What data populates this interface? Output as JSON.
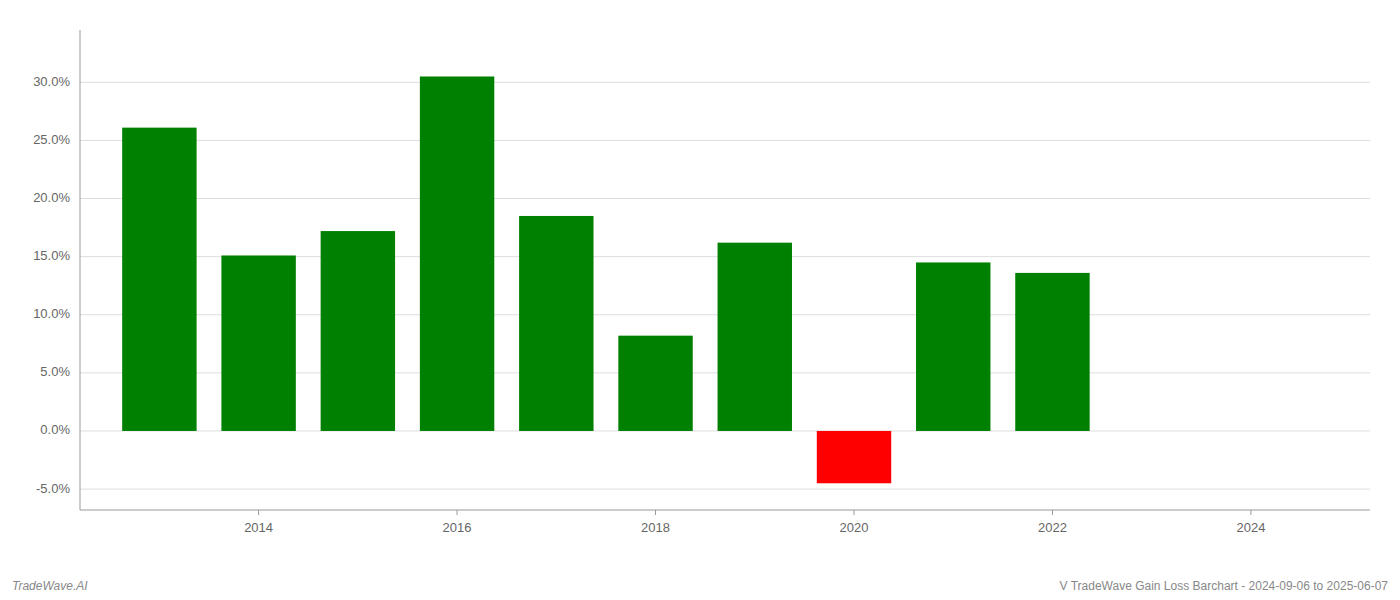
{
  "chart_data": {
    "type": "bar",
    "x": [
      2013,
      2014,
      2015,
      2016,
      2017,
      2018,
      2019,
      2020,
      2021,
      2022
    ],
    "values": [
      0.261,
      0.151,
      0.172,
      0.305,
      0.185,
      0.082,
      0.162,
      -0.045,
      0.145,
      0.136
    ],
    "colors": [
      "#008000",
      "#008000",
      "#008000",
      "#008000",
      "#008000",
      "#008000",
      "#008000",
      "#ff0000",
      "#008000",
      "#008000"
    ],
    "xlim": [
      2012.2,
      2025.2
    ],
    "xticks": [
      2014,
      2016,
      2018,
      2020,
      2022,
      2024
    ],
    "ylim": [
      -0.068,
      0.345
    ],
    "yticks": [
      {
        "value": -0.05,
        "label": "-5.0%"
      },
      {
        "value": 0.0,
        "label": "0.0%"
      },
      {
        "value": 0.05,
        "label": "5.0%"
      },
      {
        "value": 0.1,
        "label": "10.0%"
      },
      {
        "value": 0.15,
        "label": "15.0%"
      },
      {
        "value": 0.2,
        "label": "20.0%"
      },
      {
        "value": 0.25,
        "label": "25.0%"
      },
      {
        "value": 0.3,
        "label": "30.0%"
      }
    ],
    "grid": true,
    "annotations": [
      "TradeWave.AI",
      "V TradeWave Gain Loss Barchart - 2024-09-06 to 2025-06-07"
    ]
  }
}
